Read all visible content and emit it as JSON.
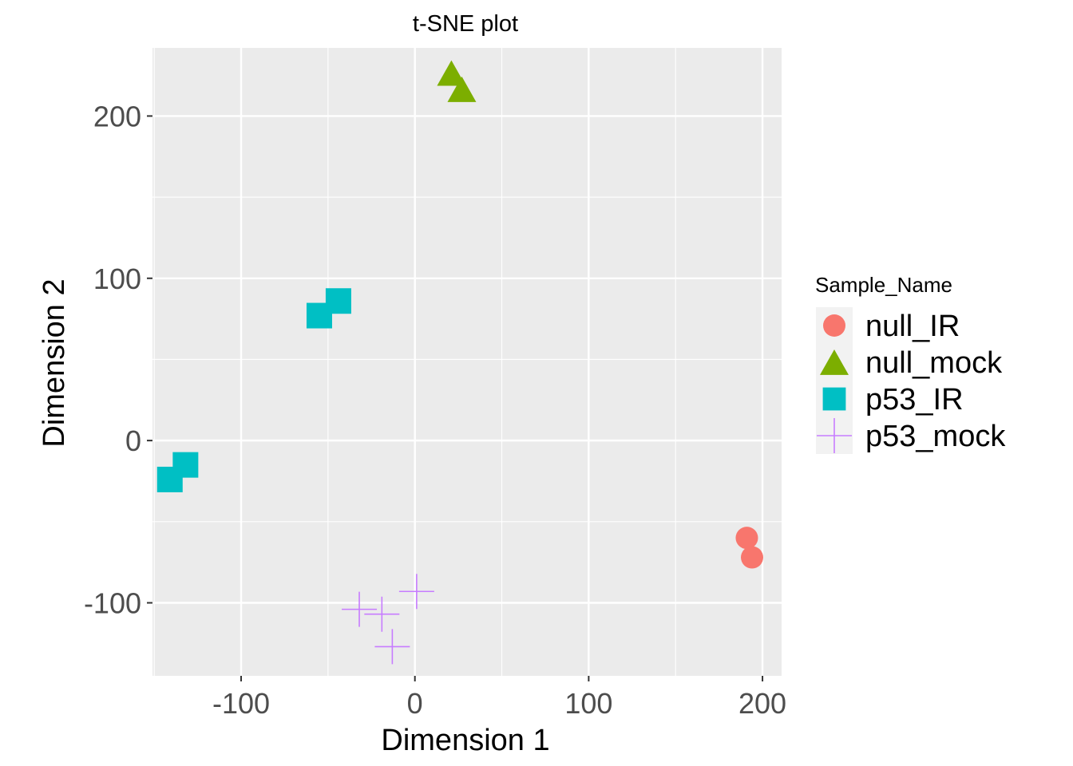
{
  "chart_data": {
    "type": "scatter",
    "title": "t-SNE plot",
    "xlabel": "Dimension 1",
    "ylabel": "Dimension 2",
    "xlim": [
      -151,
      211
    ],
    "ylim": [
      -145,
      242
    ],
    "xticks": [
      -100,
      0,
      100,
      200
    ],
    "yticks": [
      -100,
      0,
      100,
      200
    ],
    "xtick_labels": [
      "-100",
      "0",
      "100",
      "200"
    ],
    "ytick_labels": [
      "-100",
      "0",
      "100",
      "200"
    ],
    "grid": true,
    "panel_background": "#ebebeb",
    "legend": {
      "title": "Sample_Name",
      "position": "right"
    },
    "series": [
      {
        "name": "null_IR",
        "shape": "circle",
        "color": "#f8766d",
        "points": [
          {
            "x": 191,
            "y": -60
          },
          {
            "x": 194,
            "y": -72
          }
        ]
      },
      {
        "name": "null_mock",
        "shape": "triangle",
        "color": "#7cae00",
        "points": [
          {
            "x": 21,
            "y": 225
          },
          {
            "x": 27,
            "y": 215
          }
        ]
      },
      {
        "name": "p53_IR",
        "shape": "square",
        "color": "#00bfc4",
        "points": [
          {
            "x": -55,
            "y": 77
          },
          {
            "x": -44,
            "y": 86
          },
          {
            "x": -141,
            "y": -24
          },
          {
            "x": -132,
            "y": -15
          }
        ]
      },
      {
        "name": "p53_mock",
        "shape": "plus",
        "color": "#c77cff",
        "points": [
          {
            "x": -32,
            "y": -104
          },
          {
            "x": -19,
            "y": -107
          },
          {
            "x": 1,
            "y": -93
          },
          {
            "x": -13,
            "y": -127
          }
        ]
      }
    ]
  }
}
